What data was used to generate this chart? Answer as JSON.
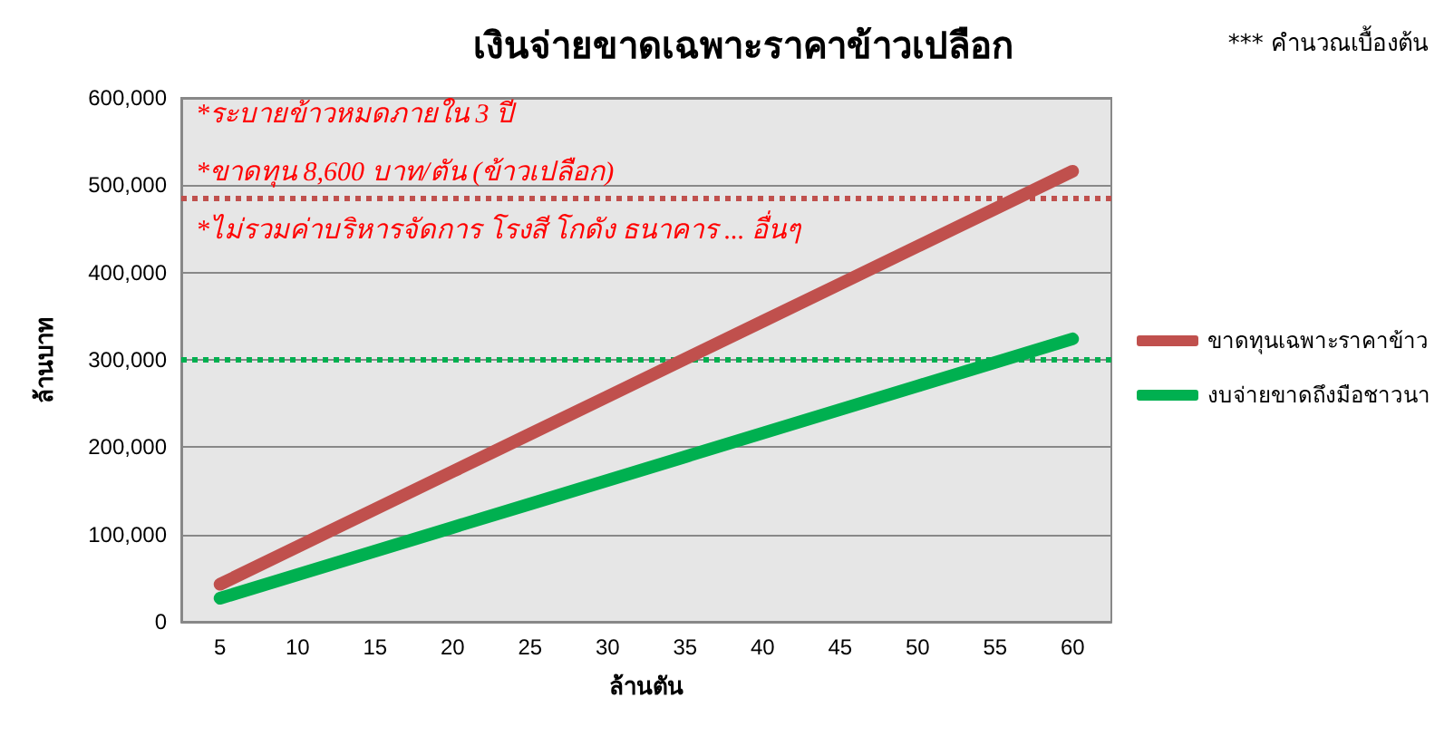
{
  "chart_data": {
    "type": "line",
    "title": "เงินจ่ายขาดเฉพาะราคาข้าวเปลือก",
    "xlabel": "ล้านตัน",
    "ylabel": "ล้านบาท",
    "categories": [
      "5",
      "10",
      "15",
      "20",
      "25",
      "30",
      "35",
      "40",
      "45",
      "50",
      "55",
      "60"
    ],
    "series": [
      {
        "name": "ขาดทุนเฉพาะราคาข้าว",
        "color": "#c0504d",
        "values": [
          43000,
          86000,
          129000,
          172000,
          215000,
          258000,
          301000,
          344000,
          387000,
          430000,
          473000,
          516000
        ]
      },
      {
        "name": "งบจ่ายขาดถึงมือชาวนา",
        "color": "#00b050",
        "values": [
          27000,
          54000,
          81000,
          108000,
          135000,
          162000,
          189000,
          216000,
          243000,
          270000,
          297000,
          324000
        ]
      }
    ],
    "ylim": [
      0,
      600000
    ],
    "yticks": [
      0,
      {
        "value": 100000,
        "label": "100,000"
      },
      {
        "value": 200000,
        "label": "200,000"
      },
      {
        "value": 300000,
        "label": "300,000"
      },
      {
        "value": 400000,
        "label": "400,000"
      },
      {
        "value": 500000,
        "label": "500,000"
      },
      {
        "value": 600000,
        "label": "600,000"
      }
    ],
    "grid": "y",
    "legend": "right",
    "line_style": "solid",
    "ref_lines": [
      {
        "axis": "y",
        "value": 485000,
        "color": "#c0504d",
        "line_style": "dotted"
      },
      {
        "axis": "y",
        "value": 300000,
        "color": "#00b050",
        "line_style": "dotted"
      }
    ],
    "annotations": [
      "*ระบายข้าวหมดภายใน 3 ปี",
      "*ขาดทุน 8,600 บาท/ตัน (ข้าวเปลือก)",
      "*ไม่รวมค่าบริหารจัดการ โรงสี โกดัง ธนาคาร ... อื่นๆ",
      "*** คำนวณเบื้องต้น"
    ]
  }
}
